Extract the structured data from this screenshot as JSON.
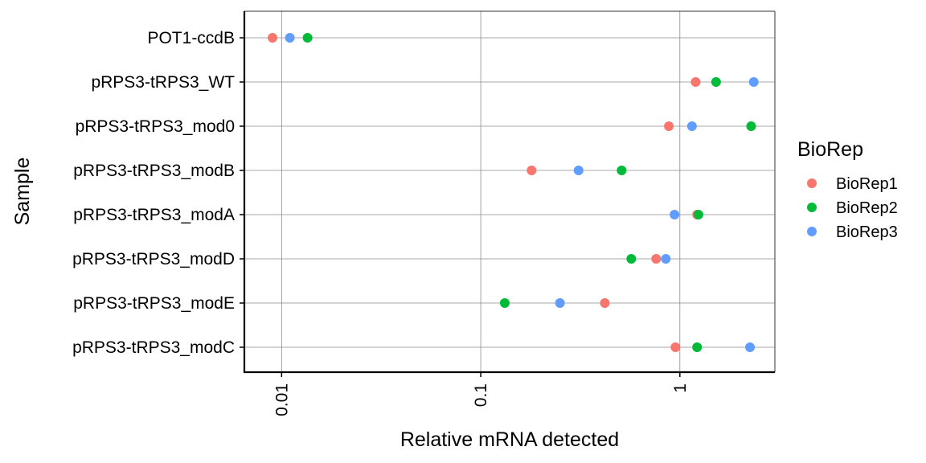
{
  "chart_data": {
    "type": "scatter",
    "title": "",
    "xlabel": "Relative mRNA detected",
    "ylabel": "Sample",
    "x_scale": "log10",
    "xlim": [
      0.0065,
      3.0
    ],
    "x_ticks": [
      0.01,
      0.1,
      1
    ],
    "x_tick_labels": [
      "0.01",
      "0.1",
      "1"
    ],
    "grid": true,
    "legend": {
      "title": "BioRep",
      "position": "right"
    },
    "categories": [
      "POT1-ccdB",
      "pRPS3-tRPS3_WT",
      "pRPS3-tRPS3_mod0",
      "pRPS3-tRPS3_modB",
      "pRPS3-tRPS3_modA",
      "pRPS3-tRPS3_modD",
      "pRPS3-tRPS3_modE",
      "pRPS3-tRPS3_modC"
    ],
    "series": [
      {
        "name": "BioRep1",
        "color": "#F8766D",
        "values": [
          0.009,
          1.2,
          0.88,
          0.18,
          1.22,
          0.76,
          0.42,
          0.95
        ]
      },
      {
        "name": "BioRep2",
        "color": "#00BA38",
        "values": [
          0.0135,
          1.52,
          2.28,
          0.51,
          1.24,
          0.57,
          0.132,
          1.22
        ]
      },
      {
        "name": "BioRep3",
        "color": "#619CFF",
        "values": [
          0.011,
          2.35,
          1.15,
          0.31,
          0.94,
          0.85,
          0.25,
          2.25
        ]
      }
    ]
  }
}
